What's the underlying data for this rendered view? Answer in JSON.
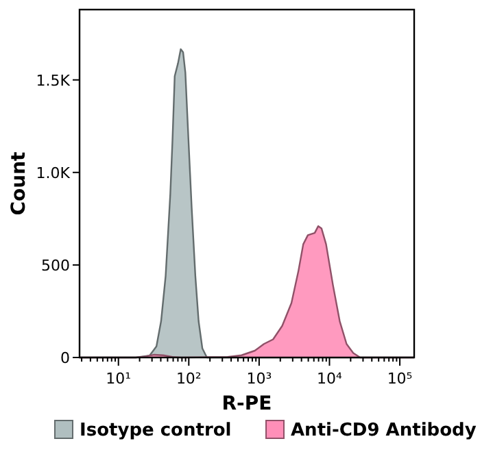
{
  "chart_data": {
    "type": "area",
    "xlabel": "R-PE",
    "ylabel": "Count",
    "log": "x",
    "xlim": [
      2.8,
      160000
    ],
    "ylim": [
      0,
      1880
    ],
    "xticks": [
      {
        "value": 10,
        "label": "10¹"
      },
      {
        "value": 100,
        "label": "10²"
      },
      {
        "value": 1000,
        "label": "10³"
      },
      {
        "value": 10000,
        "label": "10⁴"
      },
      {
        "value": 100000,
        "label": "10⁵"
      }
    ],
    "yticks": [
      0,
      500,
      {
        "value": 1000,
        "label": "1.0K"
      },
      {
        "value": 1500,
        "label": "1.5K"
      }
    ],
    "grid": false,
    "legend": "bottom",
    "series": [
      {
        "name": "Isotype control",
        "color": "#b0bfc0",
        "x": [
          2.8,
          10,
          17.7,
          27.7,
          34.7,
          40.4,
          46.9,
          54.6,
          58.7,
          63.1,
          70.3,
          76.9,
          83,
          89.4,
          99,
          110,
          124,
          138,
          156,
          181,
          1000,
          160000
        ],
        "values": [
          0,
          0,
          0,
          10,
          60,
          196,
          441,
          882,
          1176,
          1520,
          1590,
          1666,
          1650,
          1540,
          1176,
          808,
          441,
          196,
          49,
          0,
          0,
          0
        ]
      },
      {
        "name": "Anti-CD9 Antibody",
        "color": "#ff8fb8",
        "x": [
          2.8,
          17.7,
          23.9,
          32.3,
          43.4,
          58.7,
          79,
          355,
          562,
          870,
          1170,
          1580,
          2130,
          2880,
          3610,
          4240,
          4930,
          6170,
          6930,
          7700,
          8950,
          11200,
          14000,
          17500,
          21800,
          27300,
          160000
        ],
        "values": [
          0,
          0,
          5,
          15,
          12,
          3,
          0,
          3,
          12,
          37,
          73,
          98,
          171,
          294,
          465,
          612,
          661,
          673,
          710,
          698,
          612,
          392,
          196,
          73,
          24,
          0,
          0
        ]
      }
    ]
  }
}
